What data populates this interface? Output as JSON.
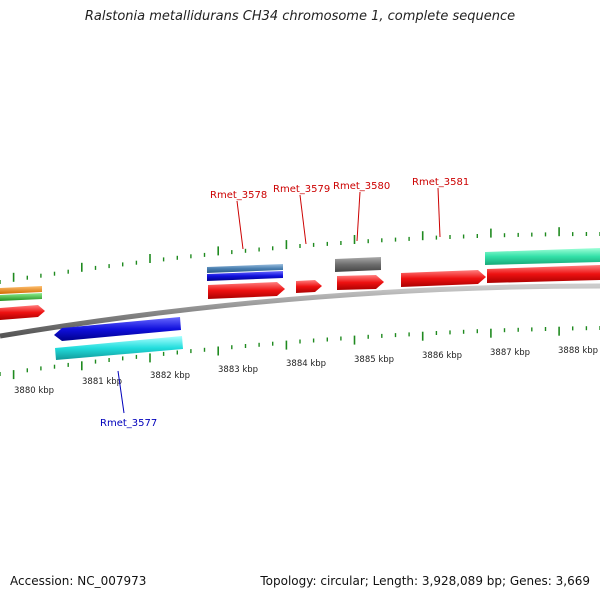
{
  "title": "Ralstonia metallidurans CH34 chromosome 1, complete sequence",
  "footer": {
    "accession": "Accession: NC_007973",
    "summary": "Topology: circular; Length: 3,928,089 bp; Genes: 3,669"
  },
  "scale_labels": [
    "3880 kbp",
    "3881 kbp",
    "3882 kbp",
    "3883 kbp",
    "3884 kbp",
    "3885 kbp",
    "3886 kbp",
    "3887 kbp",
    "3888 kbp"
  ],
  "gene_labels": [
    "Rmet_3577",
    "Rmet_3578",
    "Rmet_3579",
    "Rmet_3580",
    "Rmet_3581"
  ],
  "colors": {
    "backbone": "#8a8a8a",
    "tick": "#1f8a1f",
    "cds_red": "#ee1111",
    "blue": "#1010dd",
    "cyan": "#22dddd",
    "steel": "#4a7fb0",
    "gray": "#6e6e6e",
    "orange": "#f08a10",
    "green": "#33cc33",
    "teal": "#33e0a8",
    "label_red": "#cc0000",
    "label_blue": "#0000bb"
  }
}
